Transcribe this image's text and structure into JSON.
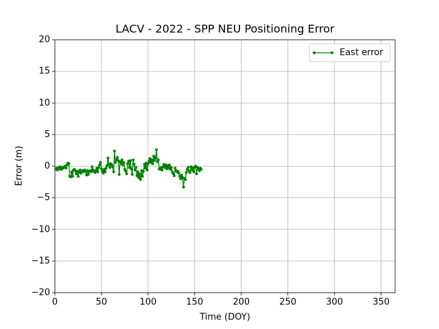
{
  "chart_data": {
    "type": "line",
    "title": "LACV - 2022 - SPP NEU Positioning Error",
    "x_label": "Time (DOY)",
    "y_label": "Error (m)",
    "x": [
      1,
      2,
      3,
      4,
      5,
      6,
      7,
      8,
      9,
      10,
      11,
      12,
      13,
      14,
      15,
      16,
      17,
      18,
      19,
      20,
      21,
      22,
      23,
      24,
      25,
      26,
      27,
      28,
      29,
      30,
      31,
      32,
      33,
      34,
      35,
      36,
      37,
      38,
      39,
      40,
      41,
      42,
      43,
      44,
      45,
      46,
      47,
      48,
      49,
      50,
      51,
      52,
      53,
      54,
      55,
      56,
      57,
      58,
      59,
      60,
      61,
      62,
      63,
      64,
      65,
      66,
      67,
      68,
      69,
      70,
      71,
      72,
      73,
      74,
      75,
      76,
      77,
      78,
      79,
      80,
      81,
      82,
      83,
      84,
      85,
      86,
      87,
      88,
      89,
      90,
      91,
      92,
      93,
      94,
      95,
      96,
      97,
      98,
      99,
      100,
      101,
      102,
      103,
      104,
      105,
      106,
      107,
      108,
      109,
      110,
      111,
      112,
      113,
      114,
      115,
      116,
      117,
      118,
      119,
      120,
      121,
      122,
      123,
      124,
      125,
      126,
      127,
      128,
      129,
      130,
      131,
      132,
      133,
      134,
      135,
      136,
      137,
      138,
      139,
      140,
      141,
      142,
      143,
      144,
      145,
      146,
      147,
      148,
      149,
      150,
      151,
      152,
      153,
      154,
      155,
      156,
      157
    ],
    "series": [
      {
        "name": "East error",
        "color": "#008000",
        "values": [
          -0.5,
          -0.3,
          -0.6,
          -0.2,
          -0.4,
          -0.1,
          -0.5,
          -0.2,
          -0.3,
          -0.1,
          0.0,
          -0.3,
          0.2,
          0.5,
          0.4,
          -1.6,
          -1.7,
          -0.9,
          -1.6,
          -0.6,
          -0.5,
          -0.7,
          -1.2,
          -0.8,
          -1.6,
          -0.9,
          -0.6,
          -1.1,
          -0.8,
          -0.7,
          -0.9,
          -0.6,
          -0.8,
          -1.4,
          -0.7,
          -1.3,
          -0.8,
          -0.7,
          -0.9,
          -0.1,
          -0.6,
          -0.8,
          -1.0,
          -0.7,
          -0.3,
          -0.9,
          -0.2,
          0.2,
          0.6,
          -0.4,
          -0.8,
          -1.1,
          -0.5,
          -0.9,
          -0.3,
          0.1,
          1.3,
          0.3,
          -0.2,
          0.4,
          0.2,
          -0.1,
          -0.9,
          2.4,
          0.6,
          1.0,
          1.4,
          0.9,
          -1.3,
          0.7,
          0.4,
          1.0,
          0.2,
          0.6,
          -0.5,
          -0.8,
          -1.2,
          0.4,
          0.8,
          -0.2,
          0.9,
          -0.4,
          -1.3,
          1.0,
          0.3,
          -0.6,
          -0.2,
          -1.5,
          -0.9,
          -1.8,
          -1.2,
          -2.1,
          -0.7,
          -1.6,
          -0.8,
          0.3,
          -0.3,
          0.5,
          -0.6,
          0.4,
          0.8,
          1.2,
          0.6,
          1.0,
          0.4,
          1.6,
          0.9,
          1.3,
          2.6,
          0.7,
          1.0,
          -0.4,
          -0.5,
          -0.2,
          -0.6,
          -0.1,
          0.3,
          -0.2,
          0.2,
          -0.4,
          0.1,
          -0.3,
          0.2,
          -0.5,
          -0.2,
          -0.9,
          -1.2,
          -1.5,
          -0.3,
          -0.7,
          -0.9,
          -0.8,
          -1.1,
          -1.6,
          -2.0,
          -1.4,
          -1.8,
          -3.3,
          -1.9,
          -2.1,
          -1.0,
          -0.5,
          -0.2,
          -0.8,
          -1.0,
          -0.1,
          -0.6,
          -0.3,
          -0.9,
          -0.1,
          0.0,
          -1.2,
          -0.2,
          -0.4,
          -0.7,
          -0.3,
          -0.5
        ]
      }
    ],
    "xlim": [
      0,
      365
    ],
    "ylim": [
      -20,
      20
    ],
    "xticks": [
      0,
      50,
      100,
      150,
      200,
      250,
      300,
      350
    ],
    "yticks": [
      {
        "value": -20,
        "label": "−20"
      },
      {
        "value": -15,
        "label": "−15"
      },
      {
        "value": -10,
        "label": "−10"
      },
      {
        "value": -5,
        "label": "−5"
      },
      0,
      5,
      10,
      15,
      20
    ],
    "grid": true,
    "legend": "upper right"
  }
}
